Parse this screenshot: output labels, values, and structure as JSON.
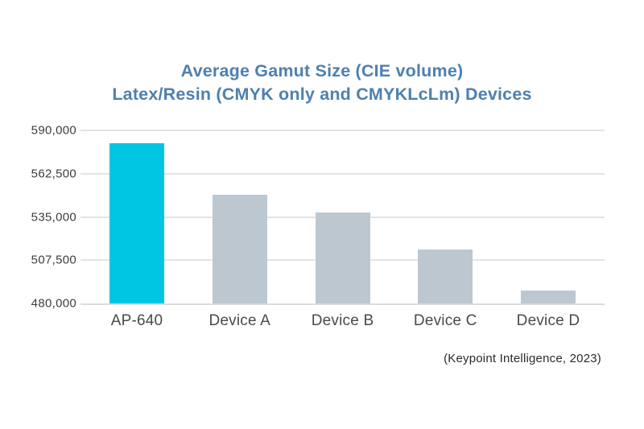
{
  "chart_data": {
    "type": "bar",
    "title": "Average Gamut Size (CIE volume)",
    "subtitle": "Latex/Resin (CMYK only and CMYKLcLm) Devices",
    "categories": [
      "AP-640",
      "Device A",
      "Device B",
      "Device C",
      "Device D"
    ],
    "values": [
      582000,
      549000,
      538000,
      514500,
      488000
    ],
    "highlight_index": 0,
    "ylim": [
      480000,
      590000
    ],
    "yticks": [
      {
        "value": 590000,
        "label": "590,000"
      },
      {
        "value": 562500,
        "label": "562,500"
      },
      {
        "value": 535000,
        "label": "535,000"
      },
      {
        "value": 507500,
        "label": "507,500"
      },
      {
        "value": 480000,
        "label": "480,000"
      }
    ],
    "grid": true,
    "legend": false,
    "source": "(Keypoint Intelligence, 2023)",
    "colors": {
      "highlight_bar": "#00c6e3",
      "default_bar": "#bdc7cf",
      "title_text": "#4e80ae",
      "axis_text": "#3d3d3d",
      "gridline": "#e3e3e3"
    }
  }
}
